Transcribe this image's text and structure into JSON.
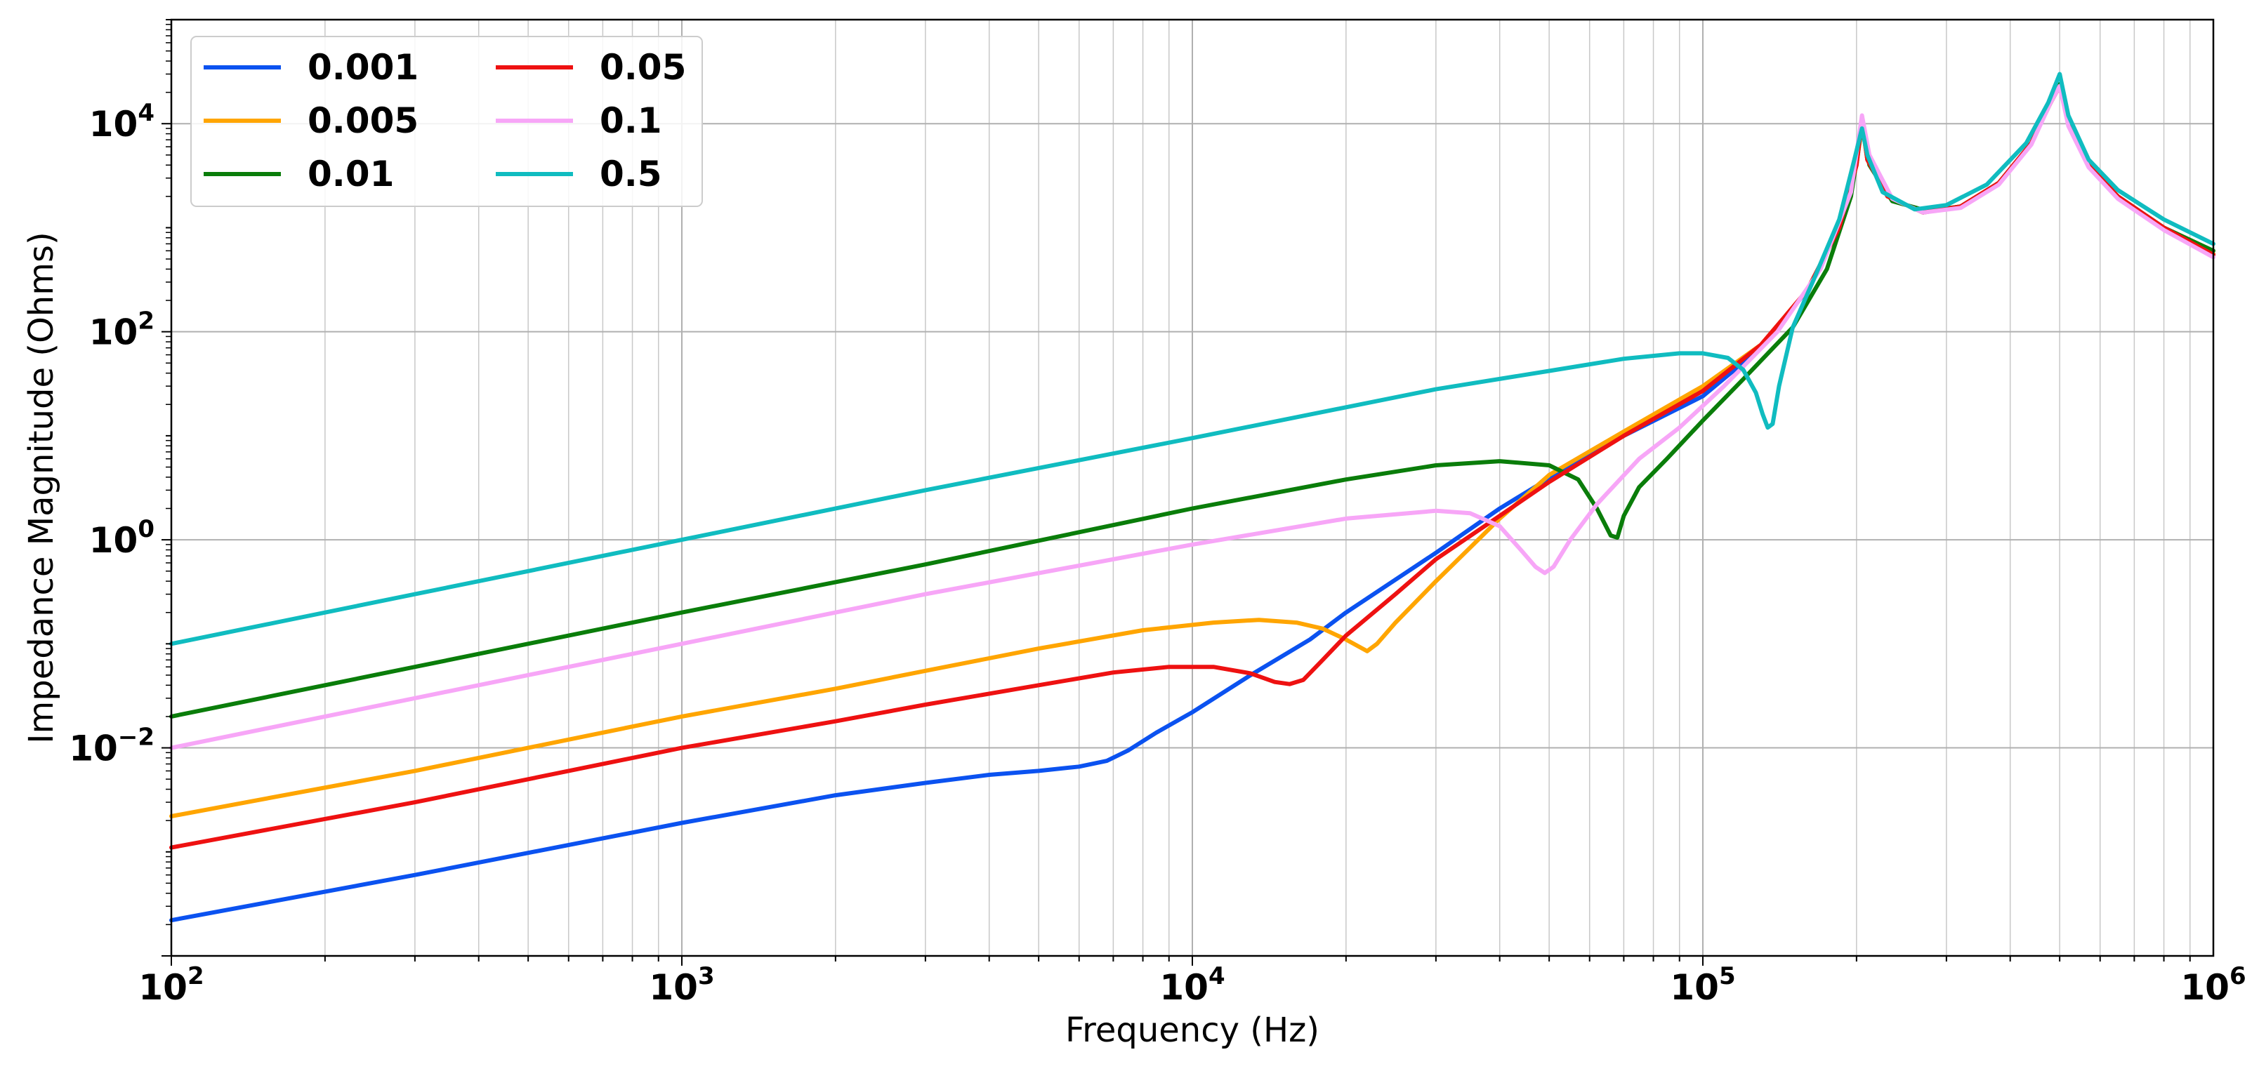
{
  "chart_data": {
    "type": "line",
    "title": "",
    "xlabel": "Frequency (Hz)",
    "ylabel": "Impedance Magnitude (Ohms)",
    "xscale": "log",
    "yscale": "log",
    "xlim": [
      100,
      1000000
    ],
    "ylim": [
      0.0001,
      100000
    ],
    "grid": true,
    "legend": {
      "position": "top-left",
      "columns": 2
    },
    "x_ticks": [
      {
        "value": 100,
        "base": "10",
        "exp": "2"
      },
      {
        "value": 1000,
        "base": "10",
        "exp": "3"
      },
      {
        "value": 10000,
        "base": "10",
        "exp": "4"
      },
      {
        "value": 100000,
        "base": "10",
        "exp": "5"
      },
      {
        "value": 1000000,
        "base": "10",
        "exp": "6"
      }
    ],
    "y_ticks": [
      {
        "value": 0.01,
        "base": "10",
        "exp": "−2"
      },
      {
        "value": 1,
        "base": "10",
        "exp": "0"
      },
      {
        "value": 100,
        "base": "10",
        "exp": "2"
      },
      {
        "value": 10000,
        "base": "10",
        "exp": "4"
      }
    ],
    "series": [
      {
        "name": "0.001",
        "color": "#0b52f0",
        "points": [
          [
            100,
            0.00022
          ],
          [
            300,
            0.0006
          ],
          [
            1000,
            0.0019
          ],
          [
            2000,
            0.0035
          ],
          [
            3000,
            0.0046
          ],
          [
            4000,
            0.0055
          ],
          [
            5000,
            0.006
          ],
          [
            6000,
            0.0066
          ],
          [
            6800,
            0.0075
          ],
          [
            7500,
            0.0095
          ],
          [
            8500,
            0.014
          ],
          [
            10000,
            0.022
          ],
          [
            13000,
            0.05
          ],
          [
            17000,
            0.11
          ],
          [
            20000,
            0.2
          ],
          [
            30000,
            0.75
          ],
          [
            40000,
            2.0
          ],
          [
            50000,
            3.9
          ],
          [
            70000,
            10
          ],
          [
            100000,
            24
          ],
          [
            130000,
            70
          ],
          [
            160000,
            250
          ],
          [
            185000,
            1000
          ],
          [
            200000,
            4000
          ],
          [
            205000,
            10000
          ],
          [
            210000,
            4500
          ],
          [
            230000,
            2000
          ],
          [
            270000,
            1400
          ],
          [
            320000,
            1600
          ],
          [
            380000,
            2700
          ],
          [
            440000,
            6500
          ],
          [
            480000,
            16000
          ],
          [
            500000,
            23000
          ],
          [
            520000,
            10000
          ],
          [
            570000,
            4000
          ],
          [
            650000,
            2000
          ],
          [
            800000,
            1000
          ],
          [
            1000000,
            550
          ]
        ]
      },
      {
        "name": "0.005",
        "color": "#ffa500",
        "points": [
          [
            100,
            0.0022
          ],
          [
            300,
            0.006
          ],
          [
            1000,
            0.02
          ],
          [
            2000,
            0.037
          ],
          [
            3000,
            0.055
          ],
          [
            5000,
            0.09
          ],
          [
            8000,
            0.135
          ],
          [
            11000,
            0.16
          ],
          [
            13500,
            0.17
          ],
          [
            16000,
            0.16
          ],
          [
            18000,
            0.14
          ],
          [
            20000,
            0.11
          ],
          [
            22000,
            0.085
          ],
          [
            23000,
            0.1
          ],
          [
            25000,
            0.16
          ],
          [
            30000,
            0.4
          ],
          [
            40000,
            1.6
          ],
          [
            50000,
            4.2
          ],
          [
            70000,
            11
          ],
          [
            100000,
            30
          ],
          [
            130000,
            75
          ],
          [
            160000,
            250
          ],
          [
            185000,
            1000
          ],
          [
            200000,
            4000
          ],
          [
            205000,
            10000
          ],
          [
            210000,
            4500
          ],
          [
            230000,
            2000
          ],
          [
            270000,
            1400
          ],
          [
            320000,
            1600
          ],
          [
            380000,
            2700
          ],
          [
            440000,
            6500
          ],
          [
            480000,
            16000
          ],
          [
            500000,
            23000
          ],
          [
            520000,
            10000
          ],
          [
            570000,
            4000
          ],
          [
            650000,
            2000
          ],
          [
            800000,
            1000
          ],
          [
            1000000,
            560
          ]
        ]
      },
      {
        "name": "0.01",
        "color": "#0a7d0a",
        "points": [
          [
            100,
            0.02
          ],
          [
            300,
            0.06
          ],
          [
            1000,
            0.2
          ],
          [
            3000,
            0.58
          ],
          [
            10000,
            2.0
          ],
          [
            20000,
            3.8
          ],
          [
            30000,
            5.2
          ],
          [
            40000,
            5.7
          ],
          [
            50000,
            5.2
          ],
          [
            57000,
            3.8
          ],
          [
            62000,
            2.0
          ],
          [
            66000,
            1.1
          ],
          [
            68000,
            1.05
          ],
          [
            70000,
            1.7
          ],
          [
            75000,
            3.2
          ],
          [
            85000,
            6
          ],
          [
            100000,
            14
          ],
          [
            120000,
            35
          ],
          [
            150000,
            110
          ],
          [
            175000,
            400
          ],
          [
            195000,
            2000
          ],
          [
            205000,
            9500
          ],
          [
            212000,
            4000
          ],
          [
            235000,
            1800
          ],
          [
            275000,
            1450
          ],
          [
            320000,
            1600
          ],
          [
            380000,
            2700
          ],
          [
            440000,
            6500
          ],
          [
            480000,
            16000
          ],
          [
            500000,
            24000
          ],
          [
            520000,
            10000
          ],
          [
            570000,
            4000
          ],
          [
            650000,
            2000
          ],
          [
            800000,
            1000
          ],
          [
            1000000,
            600
          ]
        ]
      },
      {
        "name": "0.05",
        "color": "#ee1111",
        "points": [
          [
            100,
            0.0011
          ],
          [
            300,
            0.003
          ],
          [
            1000,
            0.01
          ],
          [
            2000,
            0.018
          ],
          [
            3000,
            0.026
          ],
          [
            5000,
            0.04
          ],
          [
            7000,
            0.053
          ],
          [
            9000,
            0.06
          ],
          [
            11000,
            0.06
          ],
          [
            13000,
            0.052
          ],
          [
            14500,
            0.043
          ],
          [
            15500,
            0.041
          ],
          [
            16500,
            0.045
          ],
          [
            18000,
            0.07
          ],
          [
            20000,
            0.12
          ],
          [
            25000,
            0.3
          ],
          [
            30000,
            0.65
          ],
          [
            40000,
            1.7
          ],
          [
            50000,
            3.6
          ],
          [
            70000,
            10
          ],
          [
            100000,
            27
          ],
          [
            130000,
            75
          ],
          [
            160000,
            250
          ],
          [
            185000,
            1000
          ],
          [
            200000,
            4000
          ],
          [
            205000,
            11000
          ],
          [
            210000,
            4500
          ],
          [
            230000,
            2000
          ],
          [
            270000,
            1400
          ],
          [
            320000,
            1600
          ],
          [
            380000,
            2700
          ],
          [
            440000,
            6500
          ],
          [
            480000,
            16000
          ],
          [
            500000,
            23000
          ],
          [
            520000,
            10000
          ],
          [
            570000,
            4000
          ],
          [
            650000,
            2000
          ],
          [
            800000,
            1000
          ],
          [
            1000000,
            550
          ]
        ]
      },
      {
        "name": "0.1",
        "color": "#f7a6f7",
        "points": [
          [
            100,
            0.01
          ],
          [
            300,
            0.03
          ],
          [
            1000,
            0.1
          ],
          [
            3000,
            0.3
          ],
          [
            10000,
            0.9
          ],
          [
            20000,
            1.6
          ],
          [
            30000,
            1.9
          ],
          [
            35000,
            1.8
          ],
          [
            40000,
            1.35
          ],
          [
            44000,
            0.8
          ],
          [
            47000,
            0.55
          ],
          [
            49000,
            0.48
          ],
          [
            51000,
            0.55
          ],
          [
            55000,
            1.0
          ],
          [
            62000,
            2.2
          ],
          [
            75000,
            6
          ],
          [
            90000,
            12
          ],
          [
            110000,
            30
          ],
          [
            140000,
            100
          ],
          [
            170000,
            400
          ],
          [
            195000,
            2200
          ],
          [
            205000,
            12000
          ],
          [
            212000,
            5000
          ],
          [
            235000,
            1900
          ],
          [
            270000,
            1400
          ],
          [
            320000,
            1550
          ],
          [
            380000,
            2600
          ],
          [
            440000,
            6300
          ],
          [
            480000,
            16000
          ],
          [
            500000,
            23000
          ],
          [
            520000,
            9500
          ],
          [
            570000,
            3800
          ],
          [
            650000,
            1900
          ],
          [
            800000,
            950
          ],
          [
            1000000,
            520
          ]
        ]
      },
      {
        "name": "0.5",
        "color": "#10bcc0",
        "points": [
          [
            100,
            0.1
          ],
          [
            300,
            0.3
          ],
          [
            1000,
            1.0
          ],
          [
            3000,
            3.0
          ],
          [
            10000,
            9.5
          ],
          [
            30000,
            28
          ],
          [
            50000,
            42
          ],
          [
            70000,
            55
          ],
          [
            90000,
            62
          ],
          [
            100000,
            62
          ],
          [
            112000,
            56
          ],
          [
            120000,
            43
          ],
          [
            127000,
            26
          ],
          [
            131000,
            16
          ],
          [
            134000,
            12
          ],
          [
            137000,
            13
          ],
          [
            141000,
            30
          ],
          [
            150000,
            110
          ],
          [
            165000,
            320
          ],
          [
            185000,
            1200
          ],
          [
            198000,
            4500
          ],
          [
            205000,
            9000
          ],
          [
            210000,
            5000
          ],
          [
            225000,
            2200
          ],
          [
            260000,
            1500
          ],
          [
            300000,
            1650
          ],
          [
            360000,
            2600
          ],
          [
            430000,
            6500
          ],
          [
            475000,
            16000
          ],
          [
            500000,
            30000
          ],
          [
            520000,
            12000
          ],
          [
            570000,
            4500
          ],
          [
            650000,
            2300
          ],
          [
            800000,
            1200
          ],
          [
            1000000,
            700
          ]
        ]
      }
    ]
  }
}
